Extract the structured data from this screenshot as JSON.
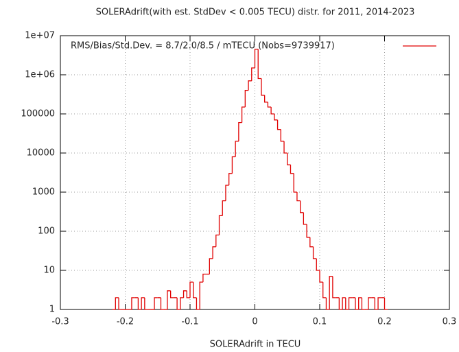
{
  "chart_data": {
    "type": "histogram",
    "title": "SOLERAdrift(with est. StdDev < 0.005 TECU) distr. for 2011, 2014-2023",
    "x_label": "SOLERAdrift in TECU",
    "bins": [
      -0.22,
      -0.215,
      -0.21,
      -0.205,
      -0.2,
      -0.195,
      -0.19,
      -0.185,
      -0.18,
      -0.175,
      -0.17,
      -0.165,
      -0.16,
      -0.155,
      -0.15,
      -0.145,
      -0.14,
      -0.135,
      -0.13,
      -0.125,
      -0.12,
      -0.115,
      -0.11,
      -0.105,
      -0.1,
      -0.095,
      -0.09,
      -0.085,
      -0.08,
      -0.075,
      -0.07,
      -0.065,
      -0.06,
      -0.055,
      -0.05,
      -0.045,
      -0.04,
      -0.035,
      -0.03,
      -0.025,
      -0.02,
      -0.015,
      -0.01,
      -0.005,
      0,
      0.005,
      0.01,
      0.015,
      0.02,
      0.025,
      0.03,
      0.035,
      0.04,
      0.045,
      0.05,
      0.055,
      0.06,
      0.065,
      0.07,
      0.075,
      0.08,
      0.085,
      0.09,
      0.095,
      0.1,
      0.105,
      0.11,
      0.115,
      0.12,
      0.125,
      0.13,
      0.135,
      0.14,
      0.145,
      0.15,
      0.155,
      0.16,
      0.165,
      0.17,
      0.175,
      0.18,
      0.185,
      0.19,
      0.195,
      0.2,
      0.205
    ],
    "series": [
      {
        "name": "RMS/Bias/Std.Dev. = 8.7/2.0/8.5 / mTECU (Nobs=9739917)",
        "color": "#e00000",
        "values": [
          1,
          2,
          1,
          1,
          1,
          1,
          2,
          2,
          1,
          2,
          1,
          1,
          1,
          2,
          2,
          1,
          1,
          3,
          2,
          2,
          1,
          2,
          3,
          2,
          5,
          2,
          1,
          5,
          8,
          8,
          20,
          40,
          80,
          250,
          600,
          1500,
          3000,
          8000,
          20000,
          60000,
          150000,
          400000,
          700000,
          1500000,
          4500000,
          800000,
          300000,
          200000,
          150000,
          100000,
          70000,
          40000,
          20000,
          10000,
          5000,
          3000,
          1000,
          600,
          300,
          150,
          70,
          40,
          20,
          10,
          5,
          2,
          1,
          7,
          2,
          2,
          1,
          2,
          1,
          2,
          2,
          1,
          2,
          1,
          1,
          2,
          2,
          1,
          2,
          2,
          1
        ]
      }
    ],
    "xlim": [
      -0.3,
      0.3
    ],
    "xticks": [
      -0.3,
      -0.2,
      -0.1,
      0,
      0.1,
      0.2,
      0.3
    ],
    "ylim": [
      1,
      10000000
    ],
    "ylog": true,
    "yticks": [
      1,
      10,
      100,
      1000,
      10000,
      100000,
      {
        "value": 1000000,
        "label": "1e+06"
      },
      {
        "value": 10000000,
        "label": "1e+07"
      }
    ],
    "grid": true
  }
}
